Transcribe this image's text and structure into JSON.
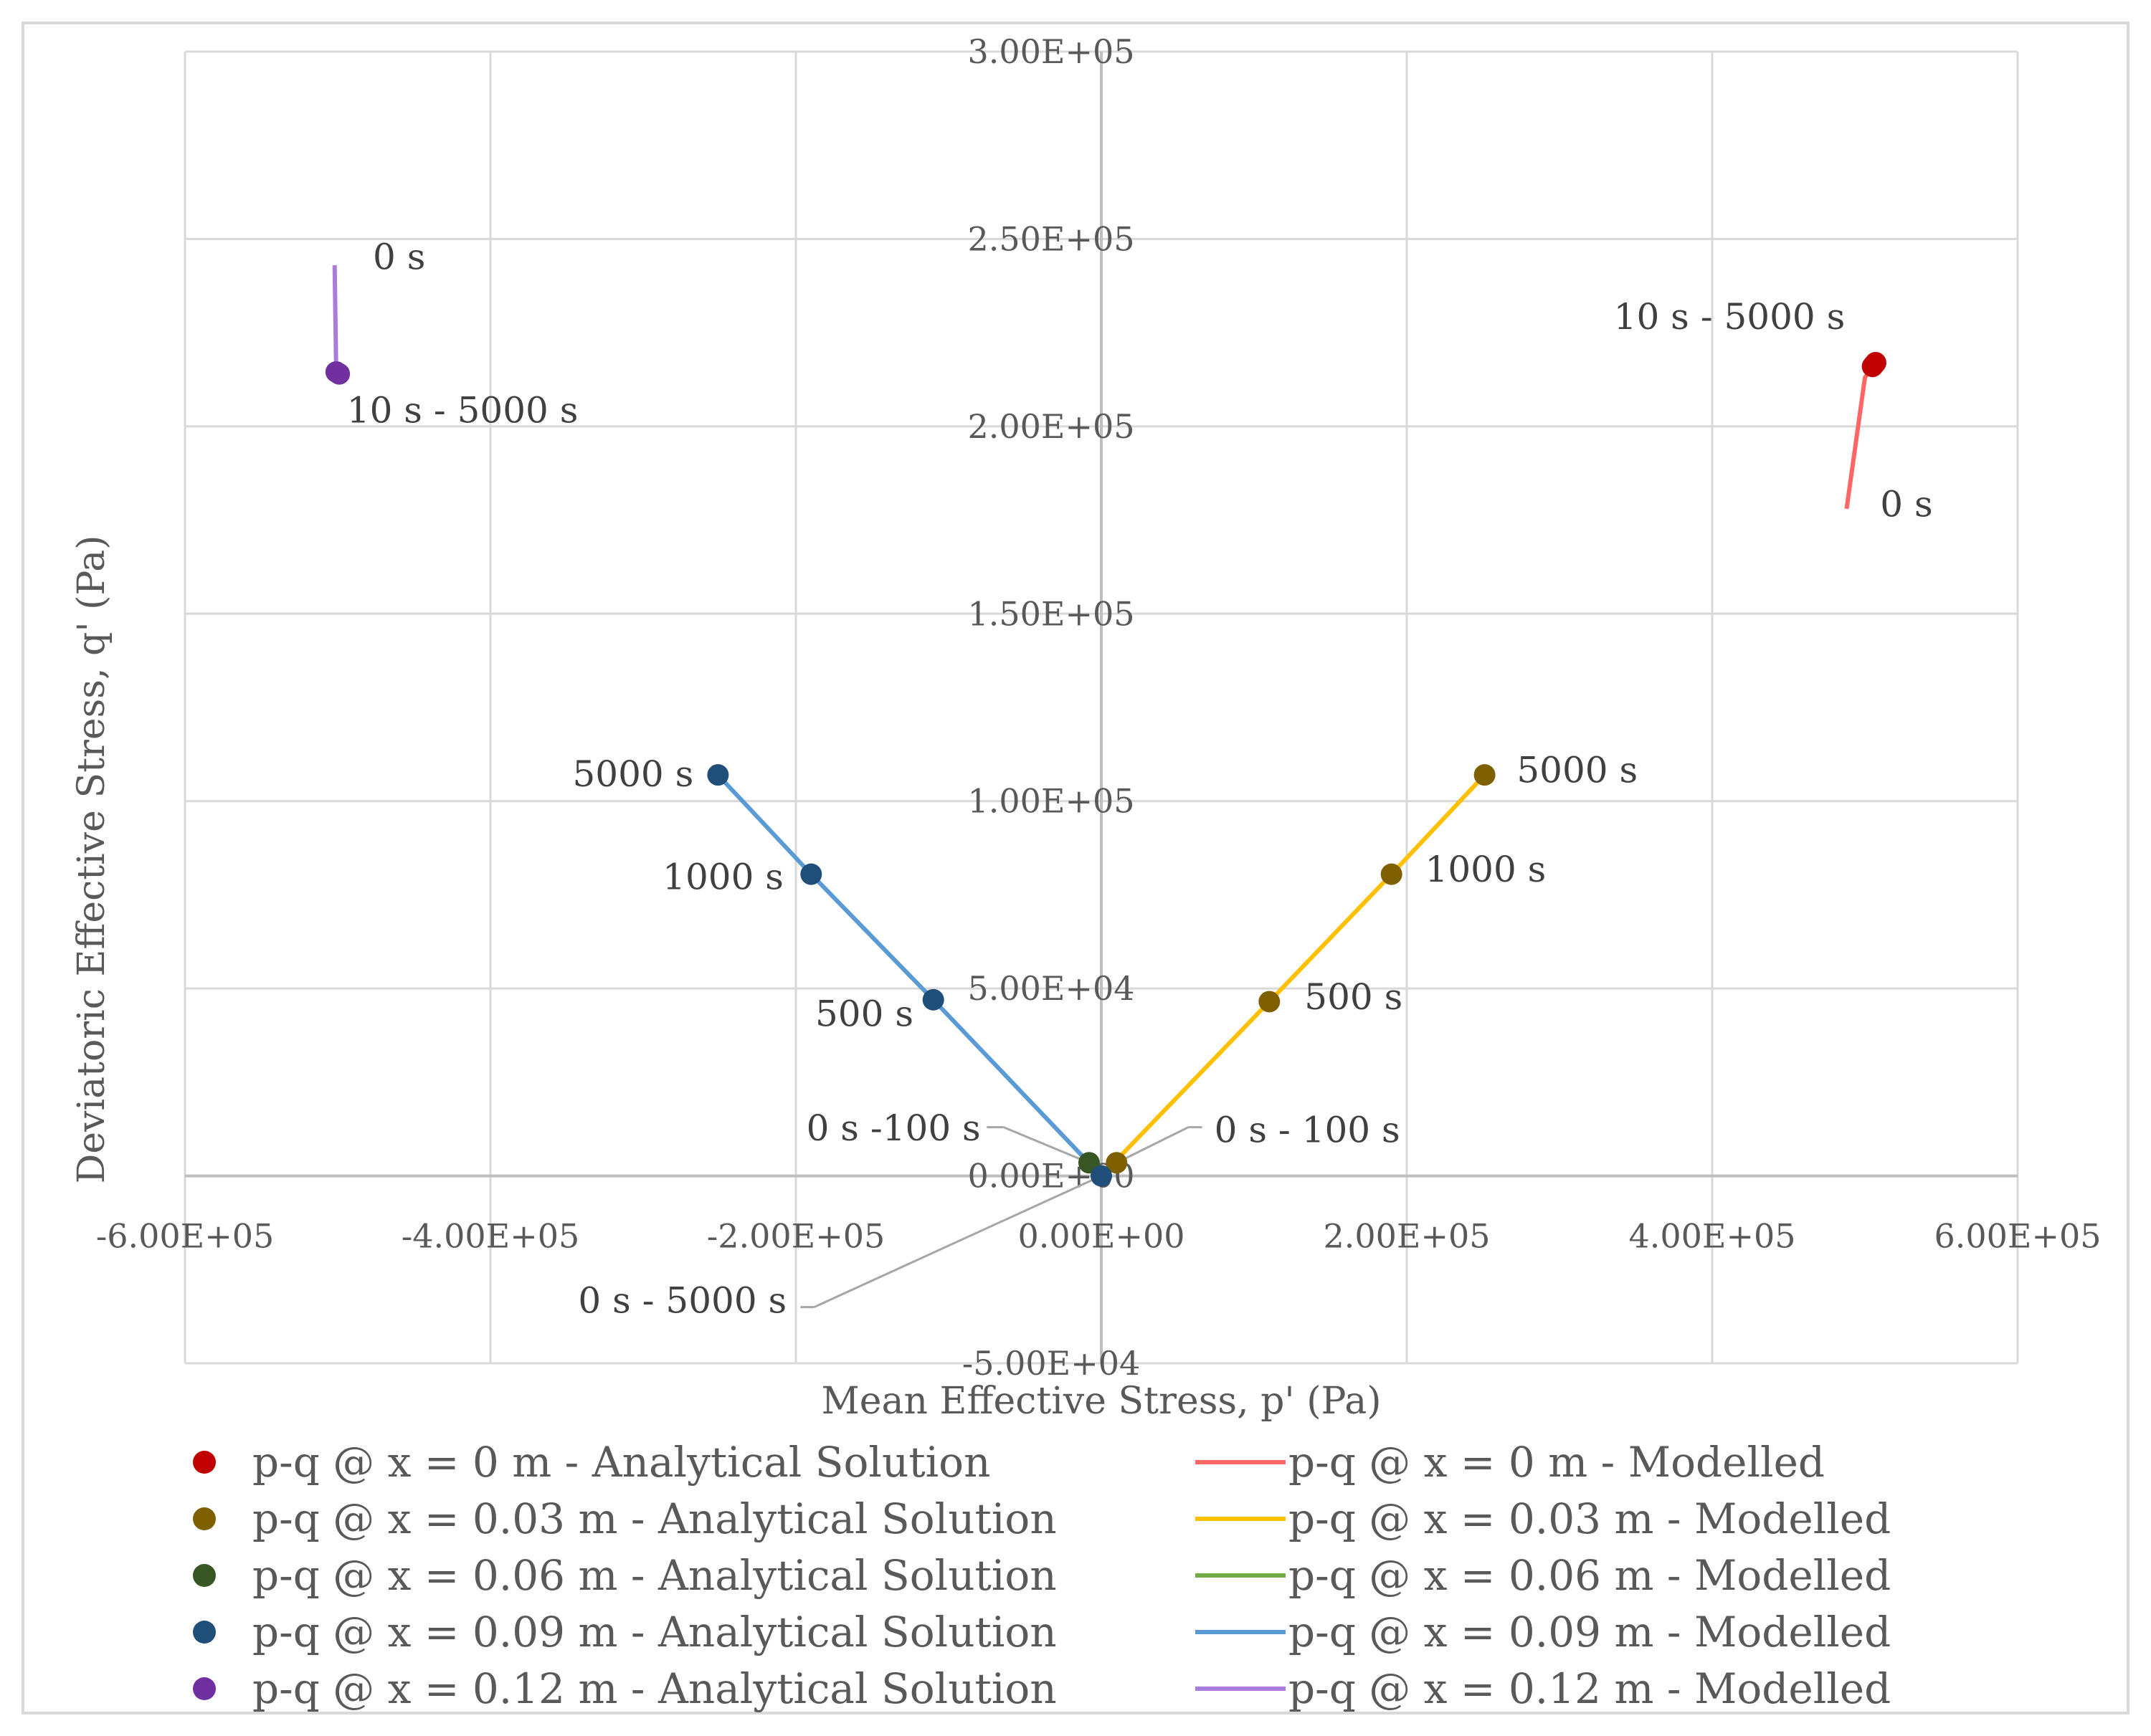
{
  "chart_data": {
    "type": "scatter",
    "title": "",
    "xlabel": "Mean Effective Stress, p' (Pa)",
    "ylabel": "Deviatoric Effective Stress, q' (Pa)",
    "xlim": [
      -600000,
      600000
    ],
    "ylim": [
      -50000,
      300000
    ],
    "x_ticks": [
      {
        "value": -600000,
        "label": "-6.00E+05"
      },
      {
        "value": -400000,
        "label": "-4.00E+05"
      },
      {
        "value": -200000,
        "label": "-2.00E+05"
      },
      {
        "value": 0,
        "label": "0.00E+00"
      },
      {
        "value": 200000,
        "label": "2.00E+05"
      },
      {
        "value": 400000,
        "label": "4.00E+05"
      },
      {
        "value": 600000,
        "label": "6.00E+05"
      }
    ],
    "y_ticks": [
      {
        "value": -50000,
        "label": "-5.00E+04"
      },
      {
        "value": 0,
        "label": "0.00E+00"
      },
      {
        "value": 50000,
        "label": "5.00E+04"
      },
      {
        "value": 100000,
        "label": "1.00E+05"
      },
      {
        "value": 150000,
        "label": "1.50E+05"
      },
      {
        "value": 200000,
        "label": "2.00E+05"
      },
      {
        "value": 250000,
        "label": "2.50E+05"
      },
      {
        "value": 300000,
        "label": "3.00E+05"
      }
    ],
    "grid": true,
    "series": [
      {
        "name": "p-q @ x = 0 m - Analytical Solution",
        "kind": "scatter",
        "color": "#C00000",
        "points": [
          {
            "x": 505000,
            "y": 216000
          },
          {
            "x": 506000,
            "y": 216500
          },
          {
            "x": 507000,
            "y": 217000
          }
        ]
      },
      {
        "name": "p-q @ x = 0.03 m - Analytical Solution",
        "kind": "scatter",
        "color": "#7F6000",
        "points": [
          {
            "x": 10000,
            "y": 3500
          },
          {
            "x": 110000,
            "y": 46500
          },
          {
            "x": 190000,
            "y": 80500
          },
          {
            "x": 251000,
            "y": 107000
          }
        ]
      },
      {
        "name": "p-q @ x = 0.06 m - Analytical Solution",
        "kind": "scatter",
        "color": "#375623",
        "points": [
          {
            "x": -8000,
            "y": 3500
          }
        ]
      },
      {
        "name": "p-q @ x = 0.09 m - Analytical Solution",
        "kind": "scatter",
        "color": "#1F4E79",
        "points": [
          {
            "x": 0,
            "y": 0
          },
          {
            "x": -110000,
            "y": 47000
          },
          {
            "x": -190000,
            "y": 80500
          },
          {
            "x": -251000,
            "y": 107000
          }
        ]
      },
      {
        "name": "p-q @ x = 0.12 m - Analytical Solution",
        "kind": "scatter",
        "color": "#7030A0",
        "points": [
          {
            "x": -501000,
            "y": 214500
          },
          {
            "x": -499000,
            "y": 214000
          }
        ]
      },
      {
        "name": "p-q @ x = 0 m - Modelled",
        "kind": "line",
        "color": "#FF6666",
        "points": [
          {
            "x": 488000,
            "y": 178000
          },
          {
            "x": 500000,
            "y": 213000
          },
          {
            "x": 505000,
            "y": 216000
          }
        ]
      },
      {
        "name": "p-q @ x = 0.03 m - Modelled",
        "kind": "line",
        "color": "#FFC000",
        "points": [
          {
            "x": 0,
            "y": 0
          },
          {
            "x": 110000,
            "y": 46500
          },
          {
            "x": 190000,
            "y": 80500
          },
          {
            "x": 251000,
            "y": 107000
          }
        ]
      },
      {
        "name": "p-q @ x = 0.06 m - Modelled",
        "kind": "line",
        "color": "#70AD47",
        "points": [
          {
            "x": 0,
            "y": 0
          },
          {
            "x": -6000,
            "y": 2500
          }
        ]
      },
      {
        "name": "p-q @ x = 0.09 m - Modelled",
        "kind": "line",
        "color": "#5B9BD5",
        "points": [
          {
            "x": 0,
            "y": 0
          },
          {
            "x": -110000,
            "y": 47000
          },
          {
            "x": -190000,
            "y": 80500
          },
          {
            "x": -251000,
            "y": 107000
          }
        ]
      },
      {
        "name": "p-q @ x = 0.12 m - Modelled",
        "kind": "line",
        "color": "#A97CDB",
        "points": [
          {
            "x": -502000,
            "y": 243000
          },
          {
            "x": -501000,
            "y": 215000
          }
        ]
      }
    ],
    "annotations": [
      {
        "text": "0 s",
        "x": -477000,
        "y": 242000,
        "anchor": "start"
      },
      {
        "text": "10 s - 5000 s",
        "x": -494000,
        "y": 201000,
        "anchor": "start"
      },
      {
        "text": "10 s - 5000 s",
        "x": 487000,
        "y": 226000,
        "anchor": "end"
      },
      {
        "text": "0 s",
        "x": 510000,
        "y": 176000,
        "anchor": "start"
      },
      {
        "text": "5000 s",
        "x": -267000,
        "y": 104000,
        "anchor": "end"
      },
      {
        "text": "1000 s",
        "x": -208000,
        "y": 76500,
        "anchor": "end"
      },
      {
        "text": "500 s",
        "x": -123000,
        "y": 40000,
        "anchor": "end"
      },
      {
        "text": "5000 s",
        "x": 272000,
        "y": 105000,
        "anchor": "start"
      },
      {
        "text": "1000 s",
        "x": 212000,
        "y": 78500,
        "anchor": "start"
      },
      {
        "text": "500 s",
        "x": 133000,
        "y": 44500,
        "anchor": "start"
      },
      {
        "text": "0 s -100 s",
        "x": -79000,
        "y": 9500,
        "anchor": "end"
      },
      {
        "text": "0 s - 100 s",
        "x": 74000,
        "y": 9000,
        "anchor": "start"
      },
      {
        "text": "0 s - 5000 s",
        "x": -206000,
        "y": -36500,
        "anchor": "end"
      }
    ],
    "leader_lines": [
      {
        "from": {
          "x": -64000,
          "y": 13000
        },
        "to": {
          "x": -75000,
          "y": 13000
        }
      },
      {
        "from": {
          "x": -64000,
          "y": 13000
        },
        "to": {
          "x": -8000,
          "y": 3500
        }
      },
      {
        "from": {
          "x": 66000,
          "y": 13000
        },
        "to": {
          "x": 57000,
          "y": 13000
        }
      },
      {
        "from": {
          "x": 57000,
          "y": 13000
        },
        "to": {
          "x": 10000,
          "y": 3500
        }
      },
      {
        "from": {
          "x": -188000,
          "y": -35000
        },
        "to": {
          "x": -197000,
          "y": -35000
        }
      },
      {
        "from": {
          "x": -188000,
          "y": -35000
        },
        "to": {
          "x": 0,
          "y": 0
        }
      }
    ],
    "legend": {
      "position": "bottom",
      "columns": 2
    }
  }
}
